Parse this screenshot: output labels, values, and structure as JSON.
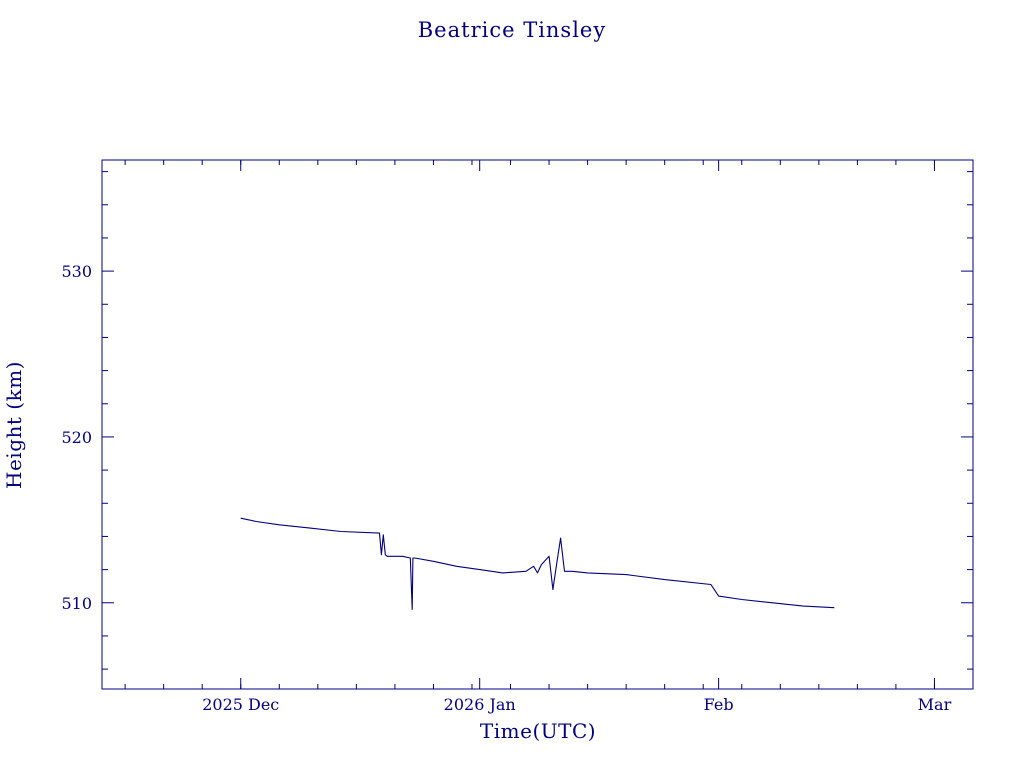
{
  "chart_data": {
    "type": "line",
    "title": "Beatrice Tinsley",
    "xlabel": "Time(UTC)",
    "ylabel": "Height (km)",
    "xlim": [
      "2025-11-13",
      "2026-03-06"
    ],
    "ylim": [
      504.8,
      536.7
    ],
    "x_ticks": [
      {
        "x": "2025-12-01",
        "label": "2025 Dec"
      },
      {
        "x": "2026-01-01",
        "label": "2026 Jan"
      },
      {
        "x": "2026-02-01",
        "label": "Feb"
      },
      {
        "x": "2026-03-01",
        "label": "Mar"
      }
    ],
    "y_ticks": [
      510,
      520,
      530
    ],
    "color": "#000080",
    "grid": false,
    "series": [
      {
        "x": [
          "2025-12-01",
          "2025-12-03",
          "2025-12-06",
          "2025-12-10",
          "2025-12-14",
          "2025-12-19",
          "2025-12-19T06:00",
          "2025-12-19T12:00",
          "2025-12-19T18:00",
          "2025-12-20",
          "2025-12-20T06:00",
          "2025-12-22",
          "2025-12-23",
          "2025-12-23T06:00",
          "2025-12-23T08:00",
          "2025-12-23T10:00",
          "2025-12-23T14:00",
          "2025-12-26",
          "2025-12-29",
          "2026-01-01",
          "2026-01-04",
          "2026-01-07",
          "2026-01-08",
          "2026-01-08T12:00",
          "2026-01-09",
          "2026-01-10",
          "2026-01-10T12:00",
          "2026-01-11",
          "2026-01-11T12:00",
          "2026-01-12",
          "2026-01-12T12:00",
          "2026-01-13",
          "2026-01-15",
          "2026-01-20",
          "2026-01-25",
          "2026-01-31",
          "2026-02-01",
          "2026-02-04",
          "2026-02-08",
          "2026-02-12",
          "2026-02-16"
        ],
        "y": [
          515.1,
          514.9,
          514.7,
          514.5,
          514.3,
          514.2,
          512.9,
          514.1,
          512.9,
          512.8,
          512.8,
          512.8,
          512.7,
          509.6,
          512.7,
          512.7,
          512.7,
          512.5,
          512.2,
          512.0,
          511.8,
          511.9,
          512.2,
          511.8,
          512.3,
          512.8,
          510.8,
          512.4,
          513.9,
          511.9,
          511.9,
          511.9,
          511.8,
          511.7,
          511.4,
          511.1,
          510.4,
          510.2,
          510.0,
          509.8,
          509.7
        ]
      }
    ]
  }
}
